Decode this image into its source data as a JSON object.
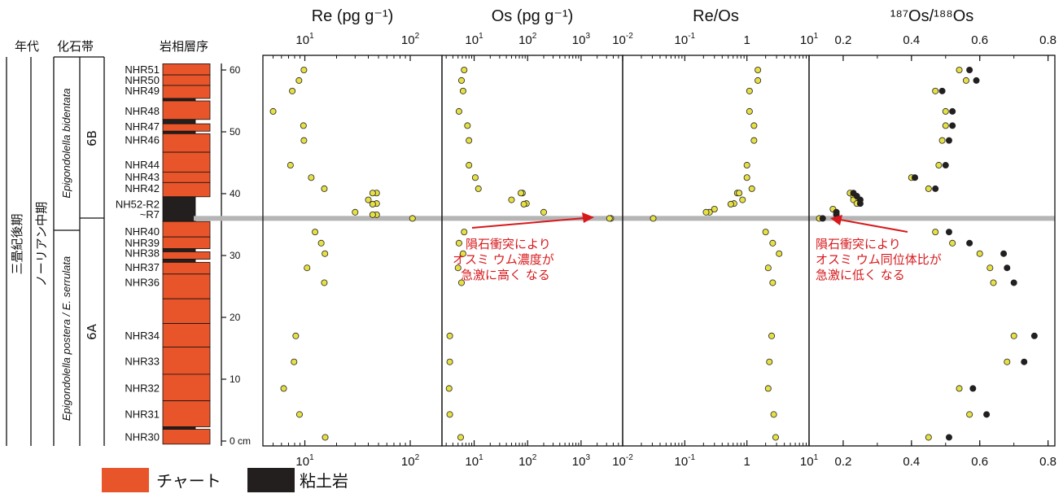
{
  "headers": {
    "age": "年代",
    "fossil": "化石帯",
    "litho": "岩相層序"
  },
  "age": {
    "late_triassic": "三畳紀後期",
    "norian": "ノーリアン中期"
  },
  "zones": {
    "upper_taxon": "Epigondolella bidentata",
    "lower_taxon": "Epigondolella postera / E. serrulata",
    "upper_zone": "6B",
    "lower_zone": "6A"
  },
  "samples": [
    {
      "label": "NHR51",
      "h": 60
    },
    {
      "label": "NHR50",
      "h": 58.3
    },
    {
      "label": "NHR49",
      "h": 56.6
    },
    {
      "label": "NHR48",
      "h": 53.3
    },
    {
      "label": "NHR47",
      "h": 50.8
    },
    {
      "label": "NHR46",
      "h": 48.6
    },
    {
      "label": "NHR44",
      "h": 44.6
    },
    {
      "label": "NHR43",
      "h": 42.6
    },
    {
      "label": "NHR42",
      "h": 40.8
    },
    {
      "label": "NH52-R2",
      "h": 38.2
    },
    {
      "label": "~R7",
      "h": 36.6
    },
    {
      "label": "NHR40",
      "h": 33.8
    },
    {
      "label": "NHR39",
      "h": 32.0
    },
    {
      "label": "NHR38",
      "h": 30.3
    },
    {
      "label": "NHR37",
      "h": 28.0
    },
    {
      "label": "NHR36",
      "h": 25.6
    },
    {
      "label": "NHR34",
      "h": 17.0
    },
    {
      "label": "NHR33",
      "h": 12.8
    },
    {
      "label": "NHR32",
      "h": 8.5
    },
    {
      "label": "NHR31",
      "h": 4.3
    },
    {
      "label": "NHR30",
      "h": 0.6
    }
  ],
  "height_axis": {
    "ticks": [
      "60",
      "50",
      "40",
      "30",
      "20",
      "10",
      "0 cm"
    ],
    "values": [
      60,
      50,
      40,
      30,
      20,
      10,
      0
    ]
  },
  "column": {
    "units": [
      {
        "lith": "chert",
        "top": 61,
        "bottom": 59.2
      },
      {
        "lith": "chert",
        "top": 59.2,
        "bottom": 57.5
      },
      {
        "lith": "chert",
        "top": 57.5,
        "bottom": 55.4
      },
      {
        "lith": "clay",
        "top": 55.4,
        "bottom": 55.0
      },
      {
        "lith": "chert",
        "top": 55.0,
        "bottom": 52.0
      },
      {
        "lith": "clay",
        "top": 52.0,
        "bottom": 51.3
      },
      {
        "lith": "chert",
        "top": 51.3,
        "bottom": 50.1
      },
      {
        "lith": "clay",
        "top": 50.1,
        "bottom": 49.7
      },
      {
        "lith": "chert",
        "top": 49.7,
        "bottom": 46.7
      },
      {
        "lith": "chert",
        "top": 46.7,
        "bottom": 43.5
      },
      {
        "lith": "chert",
        "top": 43.5,
        "bottom": 41.8
      },
      {
        "lith": "chert",
        "top": 41.8,
        "bottom": 39.5
      },
      {
        "lith": "clay",
        "top": 39.5,
        "bottom": 35.5
      },
      {
        "lith": "chert",
        "top": 35.5,
        "bottom": 33.0
      },
      {
        "lith": "chert",
        "top": 33.0,
        "bottom": 31.1
      },
      {
        "lith": "clay",
        "top": 31.1,
        "bottom": 30.6
      },
      {
        "lith": "chert",
        "top": 30.6,
        "bottom": 29.4
      },
      {
        "lith": "clay",
        "top": 29.4,
        "bottom": 28.9
      },
      {
        "lith": "chert",
        "top": 28.9,
        "bottom": 27.0
      },
      {
        "lith": "chert",
        "top": 27.0,
        "bottom": 23.0
      },
      {
        "lith": "chert",
        "top": 23.0,
        "bottom": 19.0
      },
      {
        "lith": "chert",
        "top": 19.0,
        "bottom": 15.2
      },
      {
        "lith": "chert",
        "top": 15.2,
        "bottom": 10.8
      },
      {
        "lith": "chert",
        "top": 10.8,
        "bottom": 6.5
      },
      {
        "lith": "chert",
        "top": 6.5,
        "bottom": 2.3
      },
      {
        "lith": "clay",
        "top": 2.3,
        "bottom": 1.9
      },
      {
        "lith": "chert",
        "top": 1.9,
        "bottom": -0.5
      }
    ]
  },
  "legend": {
    "chert": "チャート",
    "clay": "粘土岩"
  },
  "colors": {
    "chert": "#e8552a",
    "clay": "#231f1e",
    "point": "#e6e043",
    "impact_line": "#b5b5b5",
    "note": "#d7191c"
  },
  "impact_height": 36,
  "annotations": {
    "os_conc": [
      "隕石衝突により",
      "オスミ ウム濃度が",
      "急激に高く なる"
    ],
    "os_ratio": [
      "隕石衝突により",
      "オスミ ウム同位体比が",
      "急激に低く なる"
    ]
  },
  "chart_data": [
    {
      "type": "scatter",
      "title": "Re (pg g⁻¹)",
      "scale": "log",
      "xlim": [
        4,
        200
      ],
      "ticks": [
        {
          "v": 10,
          "t": "10"
        },
        {
          "v": 100,
          "t": "10"
        }
      ],
      "tick_exp": [
        "1",
        "2"
      ],
      "series": [
        {
          "points": [
            [
              9.8,
              60
            ],
            [
              8.8,
              58.3
            ],
            [
              7.6,
              56.6
            ],
            [
              5.0,
              53.3
            ],
            [
              9.7,
              51.0
            ],
            [
              9.8,
              48.6
            ],
            [
              7.3,
              44.6
            ],
            [
              11.5,
              42.6
            ],
            [
              15.3,
              40.8
            ],
            [
              48,
              40.1
            ],
            [
              44,
              40.1
            ],
            [
              40,
              39.0
            ],
            [
              48,
              38.4
            ],
            [
              44,
              38.3
            ],
            [
              48,
              36.6
            ],
            [
              44,
              36.6
            ],
            [
              30,
              37.0
            ],
            [
              105,
              36.0
            ],
            [
              12.5,
              33.8
            ],
            [
              14.3,
              32.0
            ],
            [
              15.5,
              30.3
            ],
            [
              10.5,
              28.0
            ],
            [
              15.3,
              25.6
            ],
            [
              8.2,
              17.0
            ],
            [
              7.9,
              12.8
            ],
            [
              6.3,
              8.5
            ],
            [
              8.9,
              4.3
            ],
            [
              15.6,
              0.6
            ]
          ]
        }
      ]
    },
    {
      "type": "scatter",
      "title": "Os (pg g⁻¹)",
      "scale": "log",
      "xlim": [
        2.5,
        6000
      ],
      "ticks": [
        {
          "v": 10,
          "t": "10"
        },
        {
          "v": 100,
          "t": "10"
        },
        {
          "v": 1000,
          "t": "10"
        }
      ],
      "tick_exp": [
        "1",
        "2",
        "3"
      ],
      "series": [
        {
          "points": [
            [
              6.5,
              60
            ],
            [
              5.8,
              58.3
            ],
            [
              6.2,
              56.6
            ],
            [
              5.2,
              53.3
            ],
            [
              7.5,
              51.0
            ],
            [
              8.0,
              48.6
            ],
            [
              8.0,
              44.6
            ],
            [
              10.5,
              42.6
            ],
            [
              12.0,
              40.8
            ],
            [
              80,
              40.1
            ],
            [
              75,
              40.1
            ],
            [
              50,
              39.0
            ],
            [
              95,
              38.4
            ],
            [
              85,
              38.3
            ],
            [
              200,
              37.0
            ],
            [
              3600,
              36.0
            ],
            [
              3400,
              36.0
            ],
            [
              6.5,
              33.8
            ],
            [
              5.2,
              32.0
            ],
            [
              6.2,
              30.3
            ],
            [
              5.0,
              28.0
            ],
            [
              5.8,
              25.6
            ],
            [
              3.5,
              17.0
            ],
            [
              3.5,
              12.8
            ],
            [
              3.4,
              8.5
            ],
            [
              3.5,
              4.3
            ],
            [
              5.6,
              0.6
            ]
          ]
        }
      ]
    },
    {
      "type": "scatter",
      "title": "Re/Os",
      "scale": "log",
      "xlim": [
        0.01,
        10
      ],
      "ticks": [
        {
          "v": 0.01,
          "t": "10"
        },
        {
          "v": 0.1,
          "t": "10"
        },
        {
          "v": 1,
          "t": "1"
        },
        {
          "v": 10,
          "t": "10"
        }
      ],
      "tick_exp": [
        "-2",
        "-1",
        "",
        "1"
      ],
      "series": [
        {
          "points": [
            [
              1.5,
              60
            ],
            [
              1.5,
              58.3
            ],
            [
              1.1,
              56.6
            ],
            [
              1.1,
              53.3
            ],
            [
              1.3,
              51.0
            ],
            [
              1.3,
              48.6
            ],
            [
              1.0,
              44.6
            ],
            [
              1.0,
              42.6
            ],
            [
              1.2,
              40.8
            ],
            [
              0.7,
              40.1
            ],
            [
              0.75,
              40.1
            ],
            [
              0.85,
              39.0
            ],
            [
              0.62,
              38.4
            ],
            [
              0.55,
              38.3
            ],
            [
              0.3,
              37.5
            ],
            [
              0.25,
              37.0
            ],
            [
              0.22,
              37.0
            ],
            [
              0.031,
              36.0
            ],
            [
              2.0,
              33.8
            ],
            [
              2.6,
              32.0
            ],
            [
              3.3,
              30.3
            ],
            [
              2.2,
              28.0
            ],
            [
              2.6,
              25.6
            ],
            [
              2.5,
              17.0
            ],
            [
              2.3,
              12.8
            ],
            [
              2.2,
              8.5
            ],
            [
              2.7,
              4.3
            ],
            [
              2.9,
              0.6
            ]
          ]
        }
      ]
    },
    {
      "type": "scatter",
      "title": "¹⁸⁷Os/¹⁸⁸Os",
      "scale": "linear",
      "xlim": [
        0.1,
        0.82
      ],
      "ticks": [
        {
          "v": 0.2,
          "t": "0.2"
        },
        {
          "v": 0.4,
          "t": "0.4"
        },
        {
          "v": 0.6,
          "t": "0.6"
        },
        {
          "v": 0.8,
          "t": "0.8"
        }
      ],
      "series": [
        {
          "name": "measured",
          "color": "#e6e043",
          "points": [
            [
              0.54,
              60
            ],
            [
              0.56,
              58.3
            ],
            [
              0.47,
              56.6
            ],
            [
              0.5,
              53.3
            ],
            [
              0.5,
              51.0
            ],
            [
              0.49,
              48.6
            ],
            [
              0.48,
              44.6
            ],
            [
              0.4,
              42.6
            ],
            [
              0.45,
              40.8
            ],
            [
              0.22,
              40.1
            ],
            [
              0.23,
              39.6
            ],
            [
              0.23,
              39.0
            ],
            [
              0.24,
              38.4
            ],
            [
              0.17,
              37.5
            ],
            [
              0.18,
              37.0
            ],
            [
              0.13,
              36.0
            ],
            [
              0.47,
              33.8
            ],
            [
              0.52,
              32.0
            ],
            [
              0.6,
              30.3
            ],
            [
              0.63,
              28.0
            ],
            [
              0.64,
              25.6
            ],
            [
              0.7,
              17.0
            ],
            [
              0.68,
              12.8
            ],
            [
              0.54,
              8.5
            ],
            [
              0.57,
              4.3
            ],
            [
              0.45,
              0.6
            ]
          ]
        },
        {
          "name": "initial",
          "color": "#231f1e",
          "points": [
            [
              0.57,
              60
            ],
            [
              0.59,
              58.3
            ],
            [
              0.49,
              56.6
            ],
            [
              0.52,
              53.3
            ],
            [
              0.52,
              51.0
            ],
            [
              0.51,
              48.6
            ],
            [
              0.5,
              44.6
            ],
            [
              0.41,
              42.6
            ],
            [
              0.47,
              40.8
            ],
            [
              0.23,
              40.1
            ],
            [
              0.24,
              39.6
            ],
            [
              0.25,
              39.0
            ],
            [
              0.25,
              38.4
            ],
            [
              0.18,
              37.0
            ],
            [
              0.18,
              36.6
            ],
            [
              0.14,
              36.0
            ],
            [
              0.51,
              33.8
            ],
            [
              0.57,
              32.0
            ],
            [
              0.67,
              30.3
            ],
            [
              0.68,
              28.0
            ],
            [
              0.7,
              25.6
            ],
            [
              0.76,
              17.0
            ],
            [
              0.73,
              12.8
            ],
            [
              0.58,
              8.5
            ],
            [
              0.62,
              4.3
            ],
            [
              0.51,
              0.6
            ]
          ]
        }
      ]
    }
  ]
}
